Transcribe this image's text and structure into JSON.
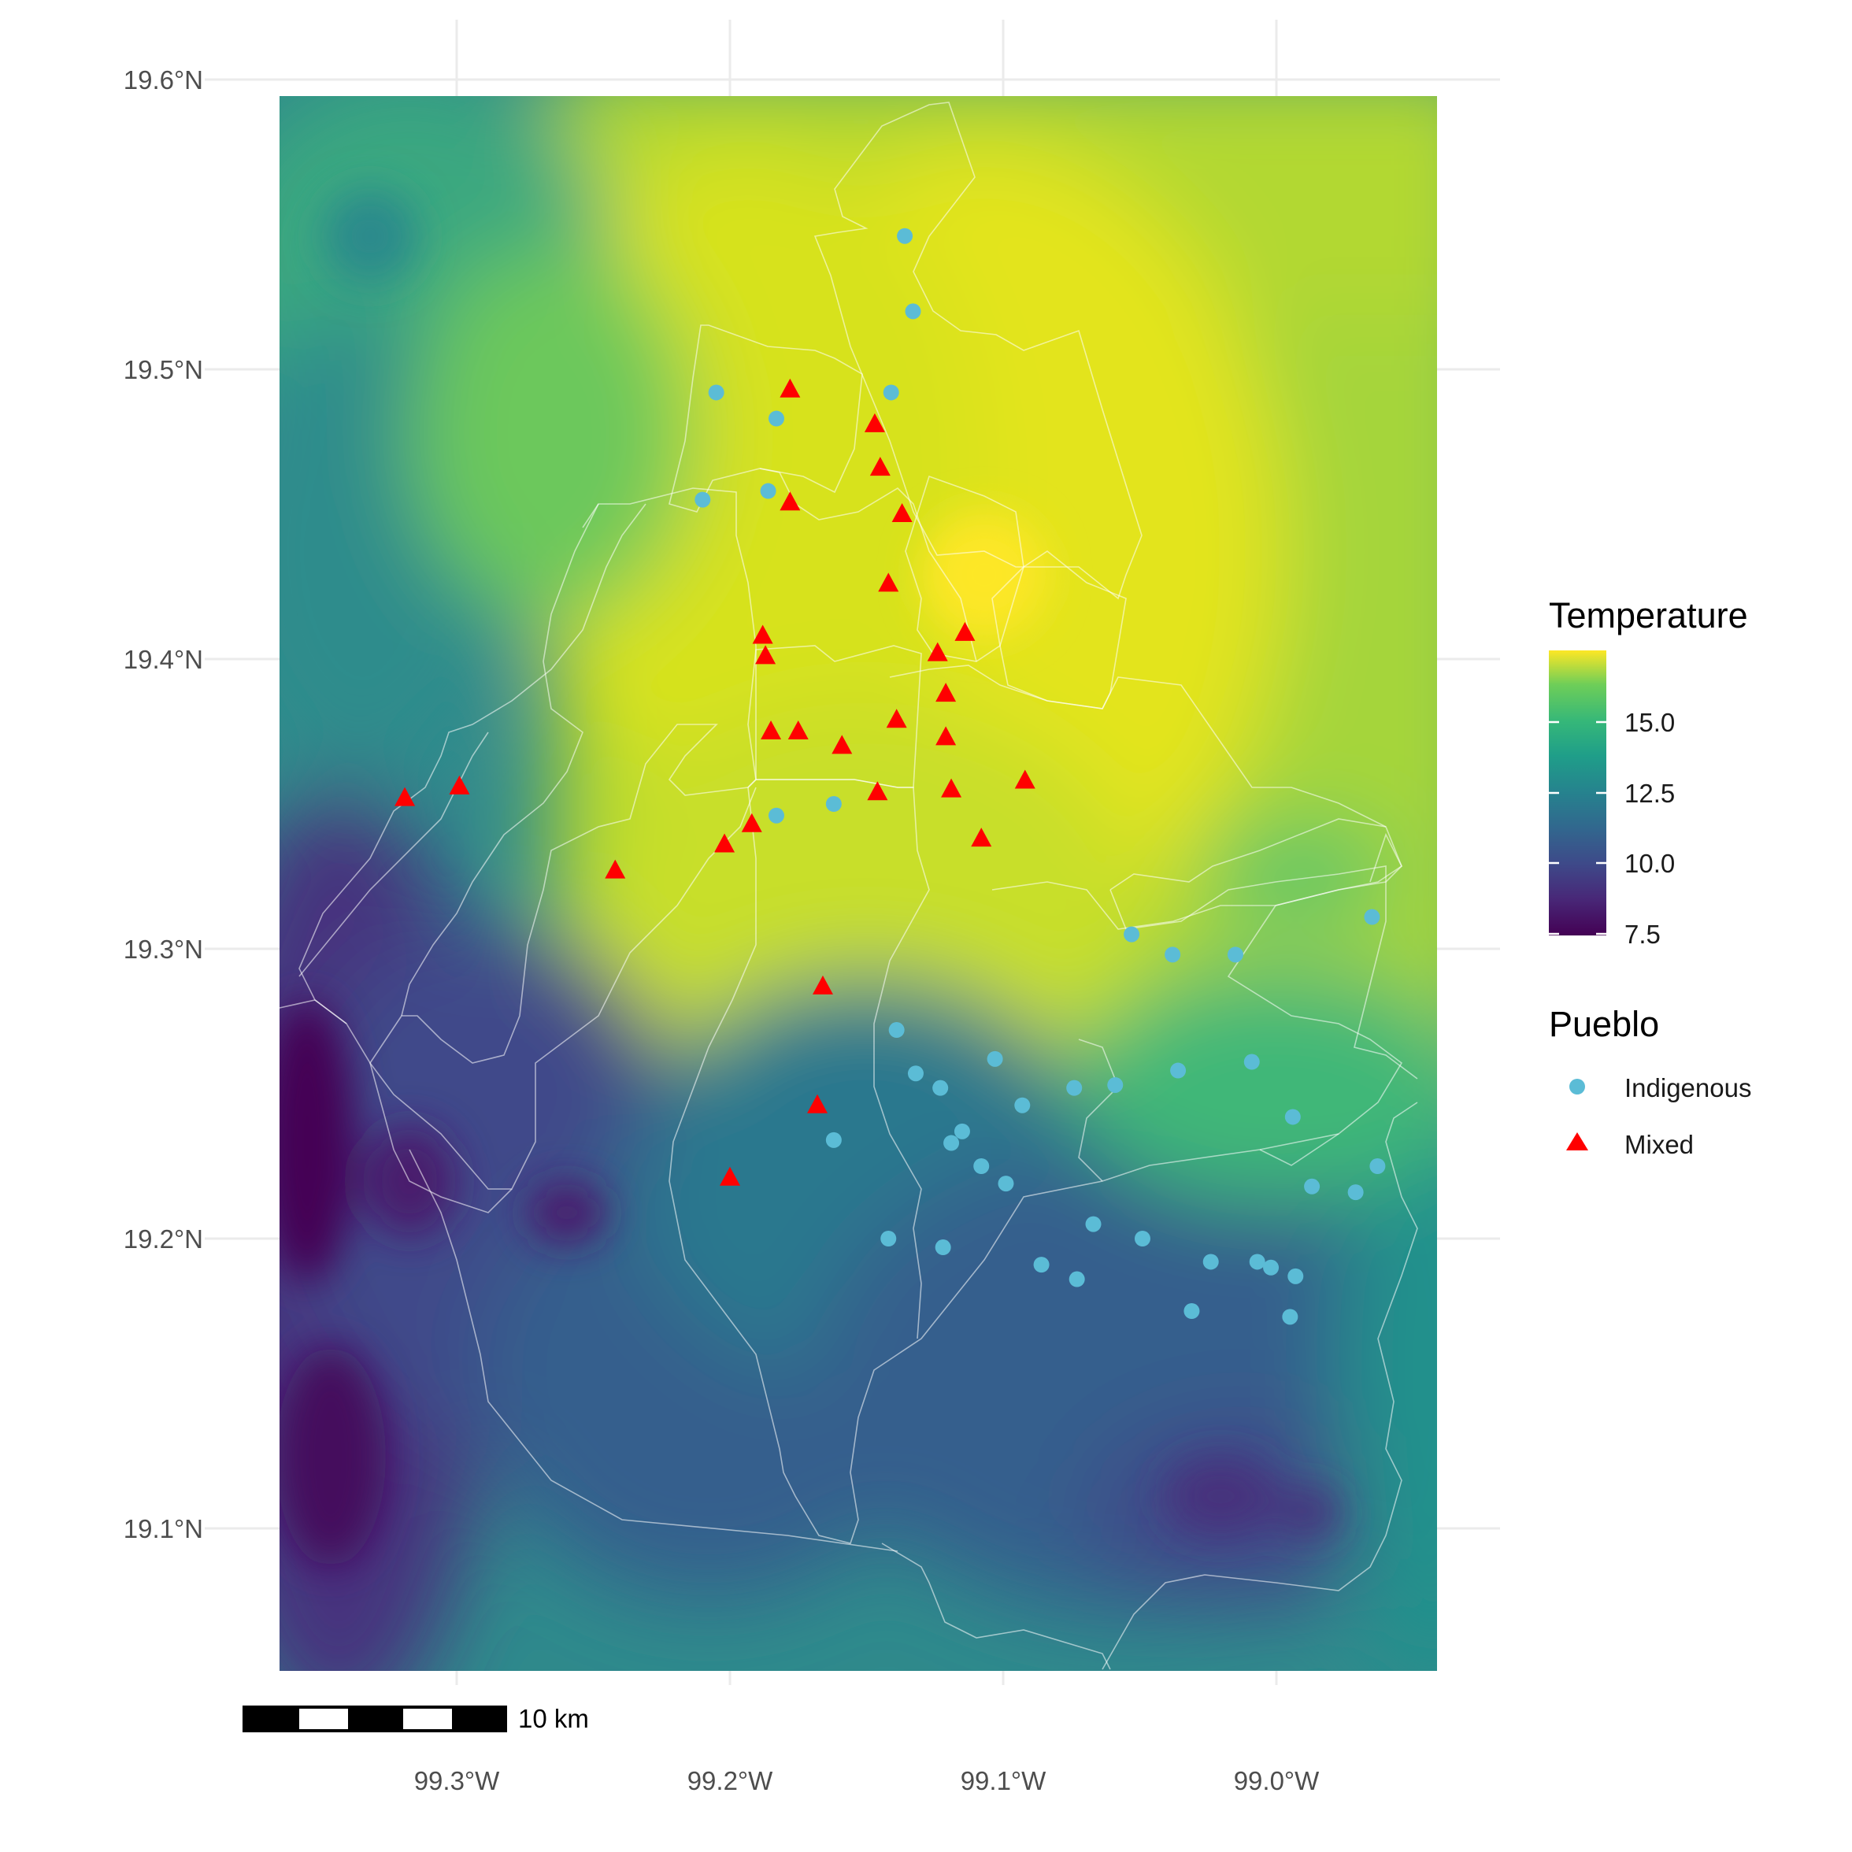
{
  "map": {
    "x_axis": {
      "ticks": [
        {
          "value": -99.3,
          "label": "99.3°W"
        },
        {
          "value": -99.2,
          "label": "99.2°W"
        },
        {
          "value": -99.1,
          "label": "99.1°W"
        },
        {
          "value": -99.0,
          "label": "99.0°W"
        }
      ],
      "range": [
        -99.37,
        -98.94
      ]
    },
    "y_axis": {
      "ticks": [
        {
          "value": 19.1,
          "label": "19.1°N"
        },
        {
          "value": 19.2,
          "label": "19.2°N"
        },
        {
          "value": 19.3,
          "label": "19.3°N"
        },
        {
          "value": 19.4,
          "label": "19.4°N"
        },
        {
          "value": 19.5,
          "label": "19.5°N"
        },
        {
          "value": 19.6,
          "label": "19.6°N"
        }
      ],
      "range": [
        19.05,
        19.595
      ]
    },
    "grid": true,
    "scale_bar_label": "10 km"
  },
  "legend": {
    "temperature_title": "Temperature",
    "temperature_ticks": [
      "15.0",
      "12.5",
      "10.0",
      "7.5"
    ],
    "pueblo_title": "Pueblo",
    "pueblo_items": [
      {
        "label": "Indigenous",
        "color": "#5bbcd6",
        "shape": "circle"
      },
      {
        "label": "Mixed",
        "color": "#ff0000",
        "shape": "triangle"
      }
    ]
  },
  "chart_data": {
    "type": "scatter",
    "raster": "temperature",
    "temperature_scale": {
      "min": 7.5,
      "max": 17.5,
      "palette": "viridis",
      "colors": [
        "#440154",
        "#3b528b",
        "#21908c",
        "#5dc863",
        "#fde725"
      ]
    },
    "series": [
      {
        "name": "Indigenous",
        "color": "#5bbcd6",
        "points": [
          [
            -99.136,
            19.546
          ],
          [
            -99.133,
            19.52
          ],
          [
            -99.205,
            19.492
          ],
          [
            -99.141,
            19.492
          ],
          [
            -99.183,
            19.483
          ],
          [
            -99.186,
            19.458
          ],
          [
            -99.21,
            19.455
          ],
          [
            -99.183,
            19.346
          ],
          [
            -99.162,
            19.35
          ],
          [
            -99.139,
            19.272
          ],
          [
            -99.132,
            19.257
          ],
          [
            -99.123,
            19.252
          ],
          [
            -99.103,
            19.262
          ],
          [
            -99.093,
            19.246
          ],
          [
            -99.074,
            19.252
          ],
          [
            -99.059,
            19.253
          ],
          [
            -99.036,
            19.258
          ],
          [
            -99.009,
            19.261
          ],
          [
            -99.115,
            19.237
          ],
          [
            -99.119,
            19.233
          ],
          [
            -99.162,
            19.234
          ],
          [
            -99.108,
            19.225
          ],
          [
            -99.099,
            19.219
          ],
          [
            -99.142,
            19.2
          ],
          [
            -99.122,
            19.197
          ],
          [
            -99.067,
            19.205
          ],
          [
            -99.049,
            19.2
          ],
          [
            -99.086,
            19.191
          ],
          [
            -99.073,
            19.186
          ],
          [
            -99.024,
            19.192
          ],
          [
            -99.007,
            19.192
          ],
          [
            -99.002,
            19.19
          ],
          [
            -98.993,
            19.187
          ],
          [
            -99.031,
            19.175
          ],
          [
            -98.995,
            19.173
          ],
          [
            -98.987,
            19.218
          ],
          [
            -98.971,
            19.216
          ],
          [
            -98.963,
            19.225
          ],
          [
            -98.994,
            19.242
          ],
          [
            -99.053,
            19.305
          ],
          [
            -99.038,
            19.298
          ],
          [
            -99.015,
            19.298
          ],
          [
            -98.965,
            19.311
          ]
        ]
      },
      {
        "name": "Mixed",
        "color": "#ff0000",
        "points": [
          [
            -99.178,
            19.493
          ],
          [
            -99.147,
            19.481
          ],
          [
            -99.145,
            19.466
          ],
          [
            -99.178,
            19.454
          ],
          [
            -99.137,
            19.45
          ],
          [
            -99.142,
            19.426
          ],
          [
            -99.188,
            19.408
          ],
          [
            -99.187,
            19.401
          ],
          [
            -99.124,
            19.402
          ],
          [
            -99.114,
            19.409
          ],
          [
            -99.121,
            19.388
          ],
          [
            -99.185,
            19.375
          ],
          [
            -99.175,
            19.375
          ],
          [
            -99.159,
            19.37
          ],
          [
            -99.139,
            19.379
          ],
          [
            -99.121,
            19.373
          ],
          [
            -99.146,
            19.354
          ],
          [
            -99.119,
            19.355
          ],
          [
            -99.092,
            19.358
          ],
          [
            -99.108,
            19.338
          ],
          [
            -99.192,
            19.343
          ],
          [
            -99.202,
            19.336
          ],
          [
            -99.242,
            19.327
          ],
          [
            -99.319,
            19.352
          ],
          [
            -99.299,
            19.356
          ],
          [
            -99.166,
            19.287
          ],
          [
            -99.168,
            19.246
          ],
          [
            -99.2,
            19.221
          ]
        ]
      }
    ]
  }
}
